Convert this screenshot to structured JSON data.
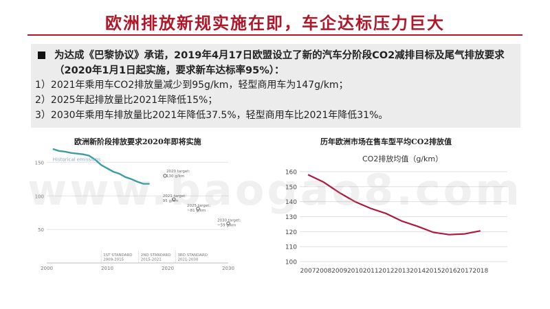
{
  "slide": {
    "title": "欧洲排放新规实施在即，车企达标压力巨大",
    "bullet": "为达成《巴黎协议》承诺，2019年4月17日欧盟设立了新的汽车分阶段CO2减排目标及尾气排放要求（2020年1月1日起实施，要求新车达标率95%）：",
    "items": [
      "1）2021年乘用车CO2排放量减少到95g/km，轻型商用车为147g/km；",
      "2）2025年起排放量比2021年降低15%；",
      "3）2030年乘用车排放量比2021年降低37.5%，轻型商用车比2021年降低31%。"
    ],
    "watermark": "www.baogao8.com"
  },
  "chart_data": [
    {
      "type": "line",
      "title": "欧洲新阶段排放要求2020年即将实施",
      "x": [
        2001,
        2002,
        2003,
        2004,
        2005,
        2006,
        2007,
        2008,
        2009,
        2010,
        2011,
        2012,
        2013,
        2014,
        2015,
        2016,
        2017
      ],
      "series": [
        {
          "name": "Historical emissions",
          "values": [
            170,
            167,
            166,
            164,
            163,
            162,
            160,
            154,
            146,
            141,
            136,
            133,
            128,
            125,
            121,
            118,
            118
          ]
        }
      ],
      "targets": [
        {
          "year": 2020,
          "value": 130,
          "label": "2020 target: 130 g/km"
        },
        {
          "year": 2021,
          "value": 95,
          "label": "2021 target: 95 g/km"
        },
        {
          "year": 2025,
          "value": 81,
          "label": "2025 target: ~81 g/km"
        },
        {
          "year": 2030,
          "value": 59,
          "label": "2030 target: ~59 g/km"
        }
      ],
      "standards": [
        {
          "name": "1ST STANDARD",
          "period": "2009-2015"
        },
        {
          "name": "2ND STANDARD",
          "period": "2015-2021"
        },
        {
          "name": "3RD STANDARD",
          "period": "2021-2030"
        }
      ],
      "xticks": [
        "2000",
        "2010",
        "2020",
        "2030"
      ],
      "yticks": [
        "50",
        "100",
        "150"
      ],
      "xlim": [
        2000,
        2030
      ],
      "ylim": [
        0,
        175
      ],
      "colors": {
        "line": "#3a9ea0",
        "grid": "#e2e2e2"
      }
    },
    {
      "type": "line",
      "title": "历年欧洲市场在售车型平均CO2排放值",
      "subtitle": "CO2排放均值（g/km）",
      "categories": [
        "2007",
        "2008",
        "2009",
        "2010",
        "2011",
        "2012",
        "2013",
        "2014",
        "2015",
        "2016",
        "2017",
        "2018"
      ],
      "series": [
        {
          "name": "CO2排放均值（g/km）",
          "values": [
            158,
            153,
            146,
            140,
            135.5,
            132,
            127,
            123.5,
            119.5,
            118,
            118.5,
            120.5
          ]
        }
      ],
      "yticks": [
        "100",
        "110",
        "120",
        "130",
        "140",
        "150",
        "160"
      ],
      "ylim": [
        100,
        160
      ],
      "colors": {
        "line": "#b0183b",
        "grid": "#d9d9d9"
      }
    }
  ]
}
